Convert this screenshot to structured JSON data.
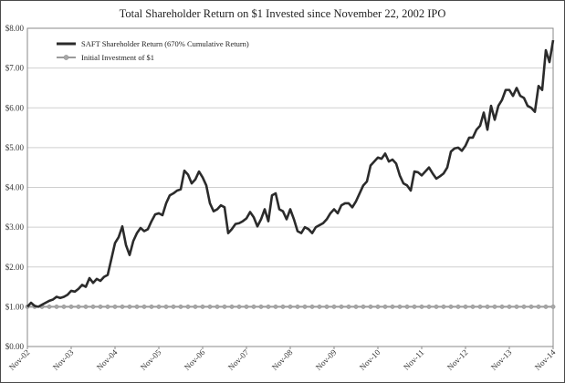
{
  "chart_data": {
    "type": "line",
    "title": "Total Shareholder Return on $1 Invested since November 22, 2002 IPO",
    "xlabel": "",
    "ylabel": "",
    "ylim": [
      0,
      8
    ],
    "x_tick_labels": [
      "Nov-02",
      "Nov-03",
      "Nov-04",
      "Nov-05",
      "Nov-06",
      "Nov-07",
      "Nov-08",
      "Nov-09",
      "Nov-10",
      "Nov-11",
      "Nov-12",
      "Nov-13",
      "Nov-14"
    ],
    "y_tick_labels": [
      "$0.00",
      "$1.00",
      "$2.00",
      "$3.00",
      "$4.00",
      "$5.00",
      "$6.00",
      "$7.00",
      "$8.00"
    ],
    "y_ticks": [
      0,
      1,
      2,
      3,
      4,
      5,
      6,
      7,
      8
    ],
    "grid": "horizontal",
    "legend_position": "top-left",
    "series": [
      {
        "name": "SAFT Shareholder Return (670% Cumulative Return)",
        "color": "#2b2b2b",
        "x": [
          0,
          1,
          2,
          3,
          4,
          5,
          6,
          7,
          8,
          9,
          10,
          11,
          12,
          13,
          14,
          15,
          16,
          17,
          18,
          19,
          20,
          21,
          22,
          23,
          24,
          25,
          26,
          27,
          28,
          29,
          30,
          31,
          32,
          33,
          34,
          35,
          36,
          37,
          38,
          39,
          40,
          41,
          42,
          43,
          44,
          45,
          46,
          47,
          48,
          49,
          50,
          51,
          52,
          53,
          54,
          55,
          56,
          57,
          58,
          59,
          60,
          61,
          62,
          63,
          64,
          65,
          66,
          67,
          68,
          69,
          70,
          71,
          72,
          73,
          74,
          75,
          76,
          77,
          78,
          79,
          80,
          81,
          82,
          83,
          84,
          85,
          86,
          87,
          88,
          89,
          90,
          91,
          92,
          93,
          94,
          95,
          96,
          97,
          98,
          99,
          100,
          101,
          102,
          103,
          104,
          105,
          106,
          107,
          108,
          109,
          110,
          111,
          112,
          113,
          114,
          115,
          116,
          117,
          118,
          119,
          120,
          121,
          122,
          123,
          124,
          125,
          126,
          127,
          128,
          129,
          130,
          131,
          132,
          133,
          134,
          135,
          136,
          137,
          138,
          139,
          140,
          141,
          142,
          143,
          144
        ],
        "values": [
          1.0,
          1.1,
          1.02,
          1.0,
          1.05,
          1.1,
          1.15,
          1.18,
          1.25,
          1.22,
          1.25,
          1.3,
          1.4,
          1.38,
          1.45,
          1.55,
          1.5,
          1.72,
          1.6,
          1.7,
          1.65,
          1.75,
          1.8,
          2.2,
          2.6,
          2.75,
          3.02,
          2.55,
          2.3,
          2.65,
          2.85,
          2.98,
          2.9,
          2.95,
          3.15,
          3.32,
          3.35,
          3.3,
          3.6,
          3.8,
          3.85,
          3.92,
          3.95,
          4.42,
          4.32,
          4.1,
          4.2,
          4.4,
          4.25,
          4.05,
          3.6,
          3.4,
          3.45,
          3.55,
          3.5,
          2.85,
          2.95,
          3.08,
          3.1,
          3.15,
          3.22,
          3.38,
          3.25,
          3.02,
          3.2,
          3.45,
          3.15,
          3.8,
          3.85,
          3.45,
          3.4,
          3.2,
          3.45,
          3.2,
          2.9,
          2.85,
          3.0,
          2.95,
          2.85,
          3.0,
          3.05,
          3.1,
          3.2,
          3.35,
          3.45,
          3.35,
          3.55,
          3.6,
          3.6,
          3.5,
          3.65,
          3.85,
          4.05,
          4.15,
          4.55,
          4.65,
          4.75,
          4.72,
          4.85,
          4.65,
          4.7,
          4.6,
          4.3,
          4.1,
          4.05,
          3.92,
          4.4,
          4.38,
          4.3,
          4.4,
          4.5,
          4.35,
          4.22,
          4.28,
          4.35,
          4.5,
          4.9,
          4.98,
          5.0,
          4.92,
          5.05,
          5.25,
          5.25,
          5.45,
          5.55,
          5.88,
          5.45,
          6.05,
          5.7,
          6.05,
          6.2,
          6.45,
          6.45,
          6.3,
          6.5,
          6.3,
          6.25,
          6.05,
          6.0,
          5.9,
          6.55,
          6.45,
          7.45,
          7.15,
          7.7
        ]
      },
      {
        "name": "Initial Investment of $1",
        "color": "#9a9a9a",
        "x": [
          0,
          144
        ],
        "values": [
          1.0,
          1.0
        ]
      }
    ]
  }
}
